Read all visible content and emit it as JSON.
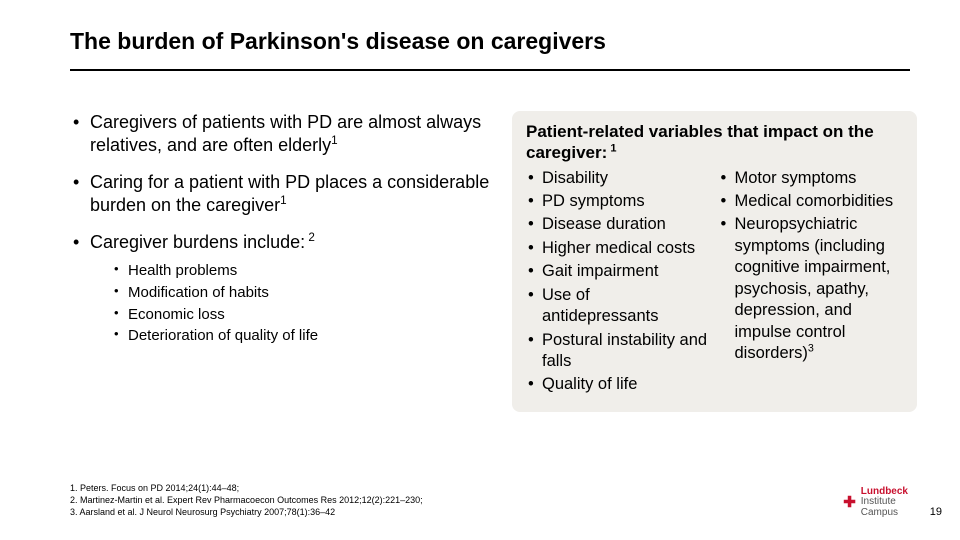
{
  "title": "The burden of Parkinson's disease on caregivers",
  "left": {
    "bullets": [
      {
        "text": "Caregivers of patients with PD are almost always relatives, and are often elderly",
        "sup": "1"
      },
      {
        "text": "Caring for a patient with PD places a considerable burden on the caregiver",
        "sup": "1"
      },
      {
        "text": "Caregiver burdens include:",
        "sup": " 2"
      }
    ],
    "sub": [
      "Health problems",
      "Modification of habits",
      "Economic loss",
      "Deterioration of quality of life"
    ]
  },
  "right": {
    "heading": "Patient-related variables that impact on the caregiver:",
    "heading_sup": " 1",
    "col1": [
      "Disability",
      "PD symptoms",
      "Disease duration",
      "Higher medical costs",
      "Gait impairment",
      "Use of antidepressants",
      "Postural instability and falls",
      "Quality of life"
    ],
    "col2": [
      {
        "text": "Motor symptoms",
        "sup": ""
      },
      {
        "text": "Medical comorbidities",
        "sup": ""
      },
      {
        "text": "Neuropsychiatric symptoms (including cognitive impairment, psychosis, apathy, depression, and impulse control disorders)",
        "sup": "3"
      }
    ]
  },
  "refs": [
    "1. Peters. Focus on PD 2014;24(1):44–48;",
    "2. Martinez-Martin et al. Expert Rev Pharmacoecon Outcomes Res 2012;12(2):221–230;",
    "3. Aarsland et al. J Neurol Neurosurg Psychiatry 2007;78(1):36–42"
  ],
  "pagenum": "19",
  "logo": {
    "brand": "Lundbeck",
    "sub": "Institute\nCampus"
  }
}
